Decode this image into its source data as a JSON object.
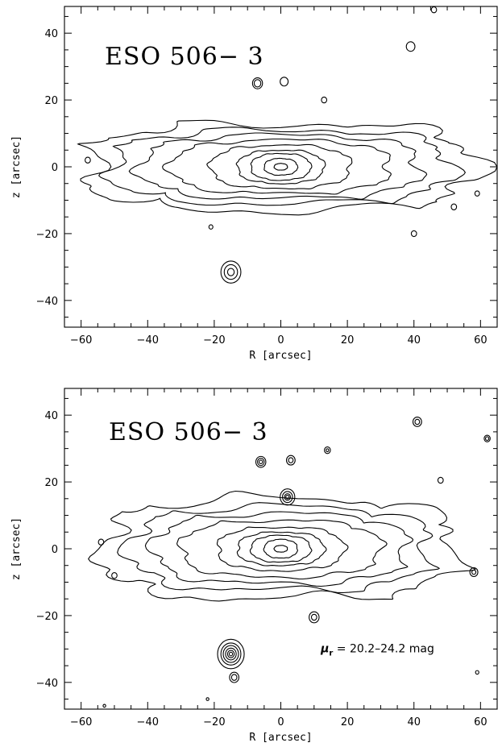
{
  "chart_data": [
    {
      "type": "contour",
      "title": "ESO 506− 3",
      "xlabel": "R [arcsec]",
      "ylabel": "z [arcsec]",
      "xlim": [
        -65,
        65
      ],
      "ylim": [
        -48,
        48
      ],
      "xticks_major": [
        -60,
        -40,
        -20,
        0,
        20,
        40,
        60
      ],
      "yticks_major": [
        -40,
        -20,
        0,
        20,
        40
      ],
      "annotation": null,
      "galaxy": {
        "center": [
          0,
          0
        ],
        "isophotes": [
          {
            "a": 58,
            "b": 13
          },
          {
            "a": 51,
            "b": 11
          },
          {
            "a": 42,
            "b": 9.5
          },
          {
            "a": 33,
            "b": 8
          },
          {
            "a": 21,
            "b": 6.5
          },
          {
            "a": 13,
            "b": 5
          },
          {
            "a": 9,
            "b": 4
          },
          {
            "a": 5,
            "b": 2.5
          },
          {
            "a": 2,
            "b": 1
          }
        ]
      },
      "sources": [
        {
          "x": -15,
          "y": -31.5,
          "levels": [
            3,
            2,
            1
          ]
        },
        {
          "x": -7,
          "y": 25,
          "levels": [
            1.5,
            1
          ]
        },
        {
          "x": 1,
          "y": 25.5,
          "levels": [
            1.2
          ]
        },
        {
          "x": 39,
          "y": 36,
          "levels": [
            1.3
          ]
        },
        {
          "x": 46,
          "y": 47,
          "levels": [
            0.8
          ]
        },
        {
          "x": 13,
          "y": 20,
          "levels": [
            0.8
          ]
        },
        {
          "x": 40,
          "y": -20,
          "levels": [
            0.8
          ]
        },
        {
          "x": 52,
          "y": -12,
          "levels": [
            0.8
          ]
        },
        {
          "x": 59,
          "y": -8,
          "levels": [
            0.7
          ]
        },
        {
          "x": -58,
          "y": 2,
          "levels": [
            0.8
          ]
        },
        {
          "x": -21,
          "y": -18,
          "levels": [
            0.6
          ]
        }
      ]
    },
    {
      "type": "contour",
      "title": "ESO 506− 3",
      "xlabel": "R [arcsec]",
      "ylabel": "z [arcsec]",
      "xlim": [
        -65,
        65
      ],
      "ylim": [
        -48,
        48
      ],
      "xticks_major": [
        -60,
        -40,
        -20,
        0,
        20,
        40,
        60
      ],
      "yticks_major": [
        -40,
        -20,
        0,
        20,
        40
      ],
      "annotation": {
        "mu": "μ",
        "sub": "r",
        "text": " = 20.2–24.2 mag",
        "x": 12,
        "y": -31
      },
      "galaxy": {
        "center": [
          0,
          0
        ],
        "isophotes": [
          {
            "a": 53,
            "b": 15
          },
          {
            "a": 45,
            "b": 12.5
          },
          {
            "a": 38,
            "b": 10.5
          },
          {
            "a": 30,
            "b": 8.5
          },
          {
            "a": 19,
            "b": 6.5
          },
          {
            "a": 13,
            "b": 5
          },
          {
            "a": 9,
            "b": 4
          },
          {
            "a": 5,
            "b": 2.8
          },
          {
            "a": 2,
            "b": 1
          }
        ]
      },
      "sources": [
        {
          "x": -15,
          "y": -31.5,
          "levels": [
            4,
            3,
            2.3,
            1.6,
            1,
            0.5
          ]
        },
        {
          "x": -14,
          "y": -38.5,
          "levels": [
            1.4,
            0.8
          ]
        },
        {
          "x": 2,
          "y": 15.5,
          "levels": [
            2.2,
            1.5,
            0.9,
            0.5
          ]
        },
        {
          "x": -6,
          "y": 26,
          "levels": [
            1.5,
            1,
            0.5
          ]
        },
        {
          "x": 3,
          "y": 26.5,
          "levels": [
            1.3,
            0.7
          ]
        },
        {
          "x": 41,
          "y": 38,
          "levels": [
            1.3,
            0.7
          ]
        },
        {
          "x": 14,
          "y": 29.5,
          "levels": [
            0.9,
            0.4
          ]
        },
        {
          "x": 48,
          "y": 20.5,
          "levels": [
            0.8
          ]
        },
        {
          "x": 62,
          "y": 33,
          "levels": [
            0.9,
            0.5
          ]
        },
        {
          "x": 10,
          "y": -20.5,
          "levels": [
            1.5,
            0.8
          ]
        },
        {
          "x": 58,
          "y": -7,
          "levels": [
            1.2,
            0.6
          ]
        },
        {
          "x": -50,
          "y": -8,
          "levels": [
            0.8
          ]
        },
        {
          "x": 59,
          "y": -37,
          "levels": [
            0.5
          ]
        },
        {
          "x": -54,
          "y": 2,
          "levels": [
            0.8
          ]
        },
        {
          "x": -22,
          "y": -45,
          "levels": [
            0.4
          ]
        },
        {
          "x": -53,
          "y": -47,
          "levels": [
            0.4
          ]
        }
      ]
    }
  ]
}
